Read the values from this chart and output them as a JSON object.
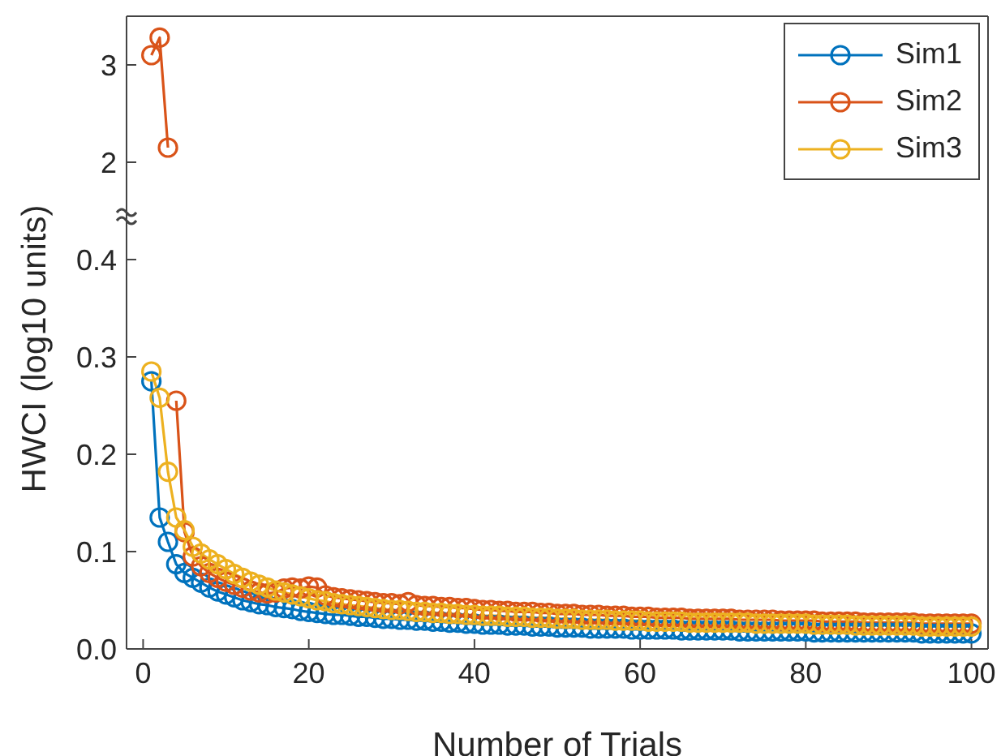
{
  "chart_data": [
    {
      "type": "line",
      "tick_labels": "y",
      "xlim": [
        -2,
        102
      ],
      "ylim": [
        1.45,
        3.5
      ],
      "yticks": [
        2,
        3
      ],
      "marker": "circle",
      "line_style": "solid",
      "series": [
        {
          "color": "#d95319",
          "x": [
            1,
            2,
            3
          ],
          "values": [
            3.1,
            3.28,
            2.15
          ]
        }
      ]
    },
    {
      "type": "line",
      "xlabel": "Number of Trials",
      "ylabel": "HWCI (log10 units)",
      "xlim": [
        -2,
        102
      ],
      "xticks": [
        0,
        20,
        40,
        60,
        80,
        100
      ],
      "ylim": [
        0,
        0.445
      ],
      "yticks": [
        {
          "value": 0,
          "label": "0.0"
        },
        0.1,
        0.2,
        0.3,
        0.4
      ],
      "legend": "top right",
      "marker": "circle",
      "line_style": "solid",
      "x": [
        1,
        2,
        3,
        4,
        5,
        6,
        7,
        8,
        9,
        10,
        11,
        12,
        13,
        14,
        15,
        16,
        17,
        18,
        19,
        20,
        21,
        22,
        23,
        24,
        25,
        26,
        27,
        28,
        29,
        30,
        31,
        32,
        33,
        34,
        35,
        36,
        37,
        38,
        39,
        40,
        41,
        42,
        43,
        44,
        45,
        46,
        47,
        48,
        49,
        50,
        51,
        52,
        53,
        54,
        55,
        56,
        57,
        58,
        59,
        60,
        61,
        62,
        63,
        64,
        65,
        66,
        67,
        68,
        69,
        70,
        71,
        72,
        73,
        74,
        75,
        76,
        77,
        78,
        79,
        80,
        81,
        82,
        83,
        84,
        85,
        86,
        87,
        88,
        89,
        90,
        91,
        92,
        93,
        94,
        95,
        96,
        97,
        98,
        99,
        100
      ],
      "series": [
        {
          "name": "Sim1",
          "color": "#0072bd",
          "values": [
            0.275,
            0.135,
            0.11,
            0.087,
            0.078,
            0.073,
            0.068,
            0.063,
            0.059,
            0.056,
            0.053,
            0.05,
            0.048,
            0.046,
            0.045,
            0.043,
            0.042,
            0.041,
            0.039,
            0.038,
            0.037,
            0.036,
            0.035,
            0.035,
            0.034,
            0.033,
            0.033,
            0.032,
            0.031,
            0.031,
            0.03,
            0.03,
            0.029,
            0.029,
            0.028,
            0.028,
            0.027,
            0.027,
            0.026,
            0.026,
            0.025,
            0.025,
            0.025,
            0.024,
            0.024,
            0.024,
            0.023,
            0.023,
            0.023,
            0.022,
            0.022,
            0.022,
            0.022,
            0.021,
            0.021,
            0.021,
            0.021,
            0.021,
            0.02,
            0.02,
            0.02,
            0.02,
            0.02,
            0.02,
            0.019,
            0.019,
            0.019,
            0.019,
            0.019,
            0.019,
            0.019,
            0.018,
            0.018,
            0.018,
            0.018,
            0.018,
            0.018,
            0.018,
            0.018,
            0.018,
            0.017,
            0.017,
            0.017,
            0.017,
            0.017,
            0.017,
            0.017,
            0.017,
            0.017,
            0.017,
            0.017,
            0.017,
            0.017,
            0.016,
            0.016,
            0.016,
            0.016,
            0.016,
            0.016,
            0.016
          ]
        },
        {
          "name": "Sim2",
          "color": "#d95319",
          "values": [
            null,
            null,
            null,
            0.255,
            0.12,
            0.095,
            0.085,
            0.078,
            0.073,
            0.069,
            0.066,
            0.063,
            0.06,
            0.058,
            0.057,
            0.058,
            0.062,
            0.063,
            0.062,
            0.064,
            0.063,
            0.055,
            0.053,
            0.052,
            0.051,
            0.05,
            0.049,
            0.048,
            0.047,
            0.047,
            0.046,
            0.048,
            0.045,
            0.044,
            0.044,
            0.043,
            0.043,
            0.042,
            0.042,
            0.041,
            0.04,
            0.04,
            0.039,
            0.039,
            0.038,
            0.038,
            0.038,
            0.037,
            0.037,
            0.036,
            0.036,
            0.036,
            0.035,
            0.035,
            0.035,
            0.034,
            0.034,
            0.034,
            0.033,
            0.033,
            0.033,
            0.032,
            0.032,
            0.032,
            0.032,
            0.031,
            0.031,
            0.031,
            0.031,
            0.031,
            0.031,
            0.03,
            0.03,
            0.03,
            0.03,
            0.03,
            0.029,
            0.029,
            0.029,
            0.029,
            0.029,
            0.028,
            0.028,
            0.028,
            0.028,
            0.028,
            0.027,
            0.027,
            0.027,
            0.027,
            0.027,
            0.027,
            0.027,
            0.026,
            0.026,
            0.026,
            0.026,
            0.026,
            0.026,
            0.026
          ]
        },
        {
          "name": "Sim3",
          "color": "#edb120",
          "values": [
            0.285,
            0.258,
            0.182,
            0.135,
            0.122,
            0.105,
            0.098,
            0.092,
            0.087,
            0.082,
            0.077,
            0.073,
            0.069,
            0.066,
            0.063,
            0.06,
            0.058,
            0.056,
            0.054,
            0.052,
            0.05,
            0.049,
            0.047,
            0.046,
            0.045,
            0.044,
            0.043,
            0.042,
            0.041,
            0.04,
            0.04,
            0.039,
            0.038,
            0.038,
            0.037,
            0.037,
            0.036,
            0.036,
            0.035,
            0.035,
            0.034,
            0.034,
            0.034,
            0.033,
            0.033,
            0.033,
            0.032,
            0.032,
            0.032,
            0.031,
            0.031,
            0.031,
            0.03,
            0.03,
            0.03,
            0.03,
            0.029,
            0.029,
            0.029,
            0.029,
            0.028,
            0.028,
            0.028,
            0.028,
            0.028,
            0.027,
            0.027,
            0.027,
            0.027,
            0.027,
            0.027,
            0.027,
            0.027,
            0.026,
            0.026,
            0.026,
            0.026,
            0.026,
            0.026,
            0.026,
            0.025,
            0.025,
            0.025,
            0.025,
            0.025,
            0.024,
            0.024,
            0.024,
            0.024,
            0.024,
            0.024,
            0.024,
            0.024,
            0.023,
            0.023,
            0.023,
            0.023,
            0.023,
            0.023,
            0.023
          ]
        }
      ]
    }
  ]
}
